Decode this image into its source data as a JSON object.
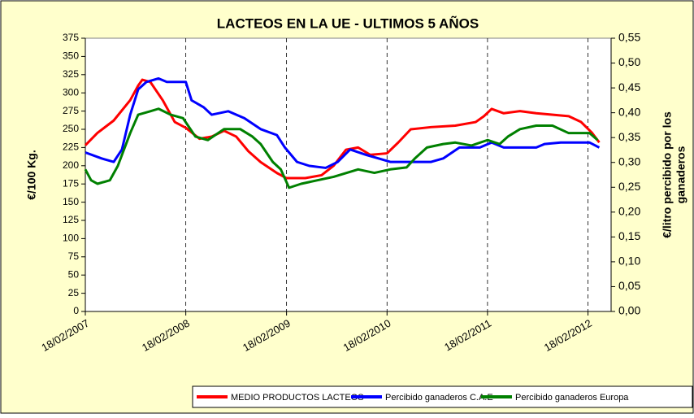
{
  "chart_data": {
    "type": "line",
    "title": "LACTEOS EN LA UE - ULTIMOS 5 AÑOS",
    "ylabel": "€/100 Kg.",
    "y2label": [
      "€/litro percibido por los",
      "ganaderos"
    ],
    "xlim": [
      "2007-02-18",
      "2012-05-12"
    ],
    "xticks": [
      {
        "value": "2007-02-18",
        "label": "18/02/2007"
      },
      {
        "value": "2008-02-18",
        "label": "18/02/2008"
      },
      {
        "value": "2009-02-18",
        "label": "18/02/2009"
      },
      {
        "value": "2010-02-18",
        "label": "18/02/2010"
      },
      {
        "value": "2011-02-18",
        "label": "18/02/2011"
      },
      {
        "value": "2012-02-18",
        "label": "18/02/2012"
      }
    ],
    "ylim": [
      0,
      375
    ],
    "yticks": [
      0,
      25,
      50,
      75,
      100,
      125,
      150,
      175,
      200,
      225,
      250,
      275,
      300,
      325,
      350,
      375
    ],
    "y2lim": [
      0,
      0.55
    ],
    "y2ticks": [
      {
        "value": 0,
        "label": "0,00"
      },
      {
        "value": 0.05,
        "label": "0,05"
      },
      {
        "value": 0.1,
        "label": "0,10"
      },
      {
        "value": 0.15,
        "label": "0,15"
      },
      {
        "value": 0.2,
        "label": "0,20"
      },
      {
        "value": 0.25,
        "label": "0,25"
      },
      {
        "value": 0.3,
        "label": "0,30"
      },
      {
        "value": 0.35,
        "label": "0,35"
      },
      {
        "value": 0.4,
        "label": "0,40"
      },
      {
        "value": 0.45,
        "label": "0,45"
      },
      {
        "value": 0.5,
        "label": "0,50"
      },
      {
        "value": 0.55,
        "label": "0,55"
      }
    ],
    "grid": "x",
    "legend": "bottom",
    "series": [
      {
        "name": "MEDIO PRODUCTOS LACTEOS",
        "color": "#ff0000",
        "axis": "y",
        "x": [
          "2007-02-18",
          "2007-04-03",
          "2007-06-01",
          "2007-07-31",
          "2007-08-29",
          "2007-09-13",
          "2007-10-12",
          "2007-11-26",
          "2008-01-09",
          "2008-02-18",
          "2008-04-08",
          "2008-05-22",
          "2008-07-06",
          "2008-08-19",
          "2008-10-02",
          "2008-11-16",
          "2009-01-14",
          "2009-02-18",
          "2009-04-27",
          "2009-06-25",
          "2009-08-08",
          "2009-09-22",
          "2009-11-05",
          "2009-12-19",
          "2010-02-18",
          "2010-03-31",
          "2010-05-15",
          "2010-07-28",
          "2010-10-24",
          "2011-01-06",
          "2011-02-05",
          "2011-03-05",
          "2011-04-18",
          "2011-06-16",
          "2011-08-14",
          "2011-12-10",
          "2012-01-24",
          "2012-03-04",
          "2012-03-30"
        ],
        "values": [
          228,
          245,
          262,
          290,
          310,
          318,
          315,
          290,
          260,
          252,
          237,
          240,
          248,
          240,
          220,
          205,
          190,
          183,
          183,
          187,
          200,
          222,
          225,
          215,
          217,
          232,
          250,
          253,
          255,
          260,
          268,
          278,
          272,
          275,
          272,
          268,
          260,
          245,
          232
        ]
      },
      {
        "name": "Percibido ganaderos C.A.E",
        "color": "#0000ff",
        "axis": "y2",
        "x": [
          "2007-02-18",
          "2007-04-18",
          "2007-06-01",
          "2007-07-01",
          "2007-07-31",
          "2007-08-29",
          "2007-09-28",
          "2007-11-11",
          "2007-12-11",
          "2008-02-18",
          "2008-03-10",
          "2008-04-23",
          "2008-05-22",
          "2008-07-21",
          "2008-09-18",
          "2008-11-16",
          "2009-01-14",
          "2009-02-12",
          "2009-03-28",
          "2009-05-12",
          "2009-07-10",
          "2009-08-23",
          "2009-10-07",
          "2009-12-05",
          "2010-01-18",
          "2010-03-02",
          "2010-07-28",
          "2010-09-10",
          "2010-11-08",
          "2011-01-21",
          "2011-03-05",
          "2011-04-18",
          "2011-08-14",
          "2011-09-13",
          "2011-11-11",
          "2012-02-24",
          "2012-03-30"
        ],
        "values": [
          0.32,
          0.308,
          0.301,
          0.326,
          0.396,
          0.447,
          0.462,
          0.469,
          0.462,
          0.462,
          0.425,
          0.411,
          0.396,
          0.403,
          0.389,
          0.367,
          0.355,
          0.33,
          0.301,
          0.293,
          0.289,
          0.301,
          0.326,
          0.315,
          0.308,
          0.301,
          0.301,
          0.308,
          0.33,
          0.33,
          0.34,
          0.33,
          0.33,
          0.337,
          0.34,
          0.34,
          0.33
        ]
      },
      {
        "name": "Percibido ganaderos Europa",
        "color": "#008000",
        "axis": "y2",
        "x": [
          "2007-02-18",
          "2007-03-11",
          "2007-04-03",
          "2007-05-18",
          "2007-06-16",
          "2007-07-31",
          "2007-08-29",
          "2007-10-12",
          "2007-11-11",
          "2007-12-25",
          "2008-02-08",
          "2008-03-24",
          "2008-05-08",
          "2008-07-06",
          "2008-09-03",
          "2008-10-17",
          "2008-11-16",
          "2008-12-30",
          "2009-01-28",
          "2009-02-27",
          "2009-04-12",
          "2009-06-10",
          "2009-08-08",
          "2009-11-05",
          "2010-01-03",
          "2010-03-02",
          "2010-04-30",
          "2010-05-30",
          "2010-07-13",
          "2010-09-10",
          "2010-10-24",
          "2010-12-22",
          "2011-02-18",
          "2011-04-03",
          "2011-05-03",
          "2011-06-16",
          "2011-08-14",
          "2011-10-12",
          "2011-12-10",
          "2012-02-24",
          "2012-03-24"
        ],
        "values": [
          0.286,
          0.264,
          0.257,
          0.264,
          0.293,
          0.359,
          0.396,
          0.403,
          0.408,
          0.396,
          0.389,
          0.352,
          0.345,
          0.367,
          0.367,
          0.352,
          0.337,
          0.301,
          0.286,
          0.249,
          0.257,
          0.264,
          0.271,
          0.286,
          0.279,
          0.286,
          0.29,
          0.308,
          0.33,
          0.337,
          0.34,
          0.334,
          0.345,
          0.337,
          0.352,
          0.367,
          0.374,
          0.374,
          0.359,
          0.359,
          0.345
        ]
      }
    ]
  }
}
